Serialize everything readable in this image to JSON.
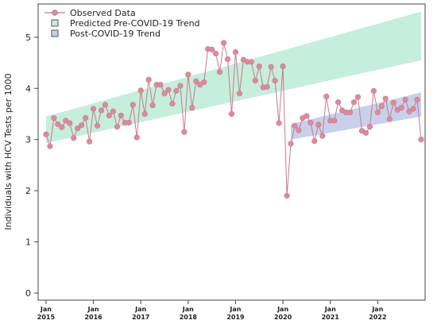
{
  "chart_data": {
    "type": "line",
    "y_label": "Individuals with HCV Tests per 1000",
    "x": [
      "2015-01",
      "2015-02",
      "2015-03",
      "2015-04",
      "2015-05",
      "2015-06",
      "2015-07",
      "2015-08",
      "2015-09",
      "2015-10",
      "2015-11",
      "2015-12",
      "2016-01",
      "2016-02",
      "2016-03",
      "2016-04",
      "2016-05",
      "2016-06",
      "2016-07",
      "2016-08",
      "2016-09",
      "2016-10",
      "2016-11",
      "2016-12",
      "2017-01",
      "2017-02",
      "2017-03",
      "2017-04",
      "2017-05",
      "2017-06",
      "2017-07",
      "2017-08",
      "2017-09",
      "2017-10",
      "2017-11",
      "2017-12",
      "2018-01",
      "2018-02",
      "2018-03",
      "2018-04",
      "2018-05",
      "2018-06",
      "2018-07",
      "2018-08",
      "2018-09",
      "2018-10",
      "2018-11",
      "2018-12",
      "2019-01",
      "2019-02",
      "2019-03",
      "2019-04",
      "2019-05",
      "2019-06",
      "2019-07",
      "2019-08",
      "2019-09",
      "2019-10",
      "2019-11",
      "2019-12",
      "2020-01",
      "2020-02",
      "2020-03",
      "2020-04",
      "2020-05",
      "2020-06",
      "2020-07",
      "2020-08",
      "2020-09",
      "2020-10",
      "2020-11",
      "2020-12",
      "2021-01",
      "2021-02",
      "2021-03",
      "2021-04",
      "2021-05",
      "2021-06",
      "2021-07",
      "2021-08",
      "2021-09",
      "2021-10",
      "2021-11",
      "2021-12",
      "2022-01",
      "2022-02",
      "2022-03",
      "2022-04",
      "2022-05",
      "2022-06",
      "2022-07",
      "2022-08",
      "2022-09",
      "2022-10",
      "2022-11",
      "2022-12"
    ],
    "series": [
      {
        "name": "Observed Data",
        "color": "#c97a8d",
        "marker_color": "#d98c9d",
        "values": [
          3.1,
          2.87,
          3.42,
          3.3,
          3.24,
          3.37,
          3.32,
          3.03,
          3.22,
          3.28,
          3.42,
          2.96,
          3.6,
          3.27,
          3.57,
          3.68,
          3.47,
          3.55,
          3.25,
          3.47,
          3.33,
          3.33,
          3.68,
          3.04,
          3.96,
          3.5,
          4.17,
          3.67,
          4.07,
          4.07,
          3.9,
          3.97,
          3.7,
          3.95,
          4.05,
          3.15,
          4.27,
          3.62,
          4.14,
          4.07,
          4.12,
          4.77,
          4.76,
          4.68,
          4.32,
          4.89,
          4.57,
          3.5,
          4.71,
          3.9,
          4.56,
          4.52,
          4.52,
          4.15,
          4.43,
          4.02,
          4.03,
          4.42,
          4.15,
          3.32,
          4.43,
          1.9,
          2.92,
          3.27,
          3.18,
          3.42,
          3.46,
          3.33,
          2.97,
          3.29,
          3.07,
          3.84,
          3.37,
          3.37,
          3.73,
          3.57,
          3.53,
          3.53,
          3.73,
          3.83,
          3.17,
          3.13,
          3.25,
          3.95,
          3.53,
          3.65,
          3.8,
          3.4,
          3.72,
          3.58,
          3.62,
          3.78,
          3.55,
          3.6,
          3.78,
          3.0
        ]
      }
    ],
    "bands": [
      {
        "name": "Predicted Pre-COVID-19 Trend",
        "color": "#c5eedd",
        "x": [
          "2015-01",
          "2022-12"
        ],
        "lower": [
          2.93,
          4.55
        ],
        "upper": [
          3.45,
          5.5
        ]
      },
      {
        "name": "Post-COVID-19 Trend",
        "color": "#c9d0ea",
        "x": [
          "2020-03",
          "2022-12"
        ],
        "lower": [
          3.0,
          3.45
        ],
        "upper": [
          3.3,
          3.92
        ]
      }
    ],
    "xlim": [
      "2014-11",
      "2023-01"
    ],
    "xticks": [
      {
        "value": "2015-01",
        "label": "Jan 2015"
      },
      {
        "value": "2016-01",
        "label": "Jan 2016"
      },
      {
        "value": "2017-01",
        "label": "Jan 2017"
      },
      {
        "value": "2018-01",
        "label": "Jan 2018"
      },
      {
        "value": "2019-01",
        "label": "Jan 2019"
      },
      {
        "value": "2020-01",
        "label": "Jan 2020"
      },
      {
        "value": "2021-01",
        "label": "Jan 2021"
      },
      {
        "value": "2022-01",
        "label": "Jan 2022"
      }
    ],
    "ylim": [
      -0.14,
      5.65
    ],
    "yticks": [
      0,
      1,
      2,
      3,
      4,
      5
    ],
    "legend": "upper left"
  }
}
